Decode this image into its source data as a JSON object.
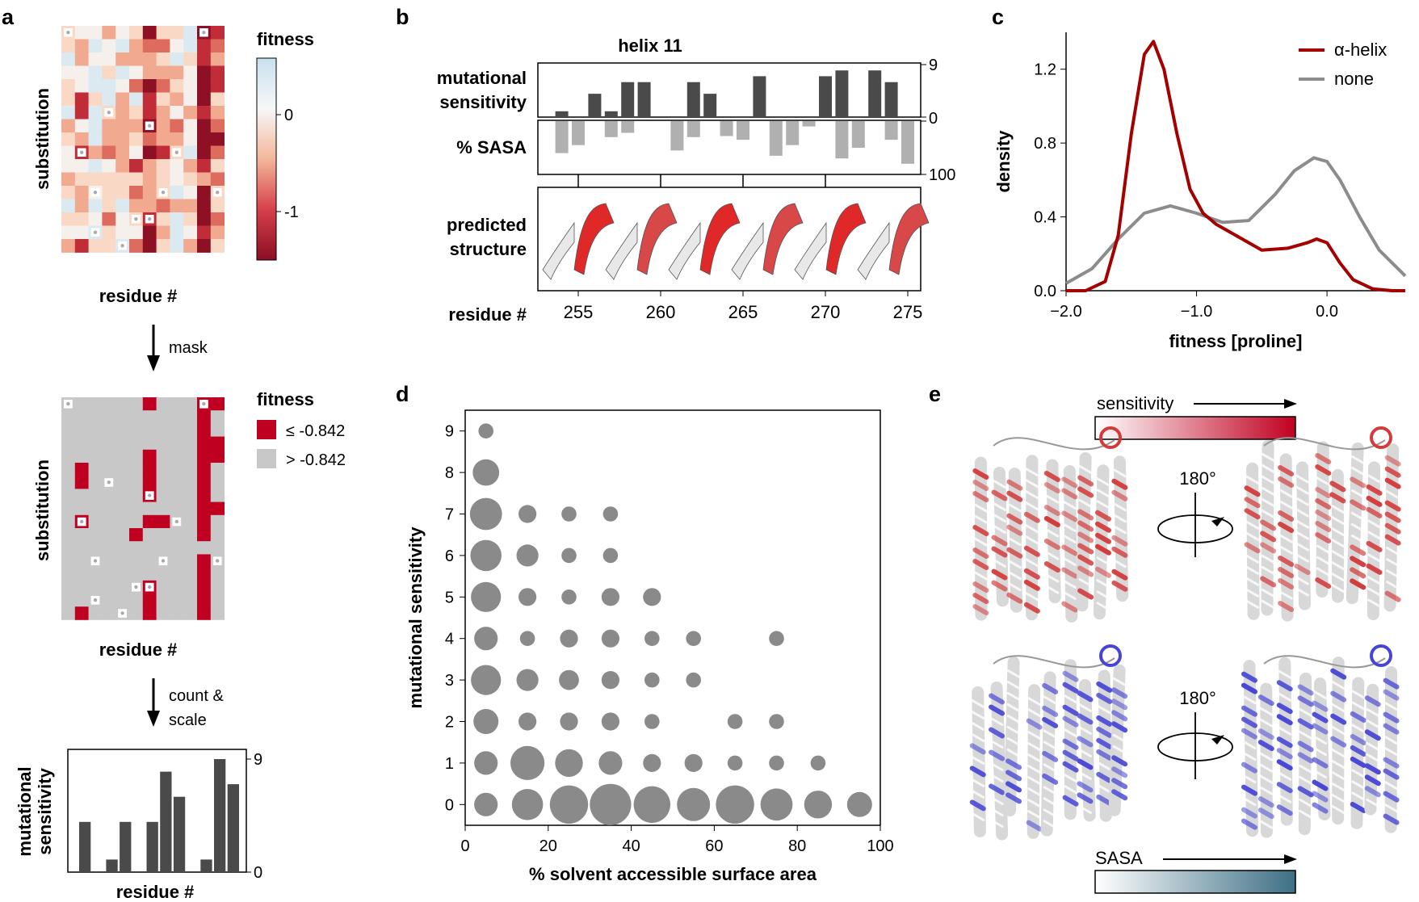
{
  "figure": {
    "panel_labels": [
      "a",
      "b",
      "c",
      "d",
      "e"
    ]
  },
  "panel_a": {
    "heatmap_ylabel": "substitution",
    "heatmap_xlabel": "residue #",
    "colorbar_title": "fitness",
    "colorbar_ticks": [
      "0",
      "-1"
    ],
    "arrow1_label": "mask",
    "mask_title": "fitness",
    "mask_legend": [
      "≤ -0.842",
      "> -0.842"
    ],
    "mask_ylabel": "substitution",
    "mask_xlabel": "residue #",
    "arrow2_label_line1": "count &",
    "arrow2_label_line2": "scale",
    "bar_ylabel_line1": "mutational",
    "bar_ylabel_line2": "sensitivity",
    "bar_xlabel": "residue #",
    "bar_ticks": [
      "9",
      "0"
    ],
    "bar_values": [
      4,
      0,
      1,
      4,
      0,
      4,
      8,
      6,
      0,
      1,
      9,
      7
    ],
    "colors": {
      "high": "#67001f",
      "low": "#c00020",
      "masked_gray": "#c8c8c8",
      "bar": "#4a4a4a"
    }
  },
  "panel_b": {
    "title": "helix 11",
    "sens_label_line1": "mutational",
    "sens_label_line2": "sensitivity",
    "sasa_label": "% SASA",
    "struct_label_line1": "predicted",
    "struct_label_line2": "structure",
    "xlabel": "residue #",
    "sens_ticks": [
      "9",
      "0"
    ],
    "sasa_ticks": [
      "0",
      "100"
    ],
    "x_ticks": [
      "255",
      "260",
      "265",
      "270",
      "275"
    ],
    "residues": [
      254,
      255,
      256,
      257,
      258,
      259,
      260,
      261,
      262,
      263,
      264,
      265,
      266,
      267,
      268,
      269,
      270,
      271,
      272,
      273,
      274,
      275
    ],
    "sensitivity": [
      1,
      0,
      4,
      1,
      6,
      6,
      0,
      0,
      6,
      4,
      0,
      0,
      7,
      0,
      0,
      0,
      7,
      8,
      0,
      8,
      6,
      0
    ],
    "sasa": [
      60,
      45,
      0,
      30,
      22,
      0,
      0,
      55,
      30,
      0,
      28,
      35,
      0,
      65,
      45,
      10,
      0,
      70,
      50,
      0,
      35,
      80
    ]
  },
  "panel_c": {
    "chart_data": {
      "type": "line",
      "xlabel": "fitness [proline]",
      "ylabel": "density",
      "xlim": [
        -2.0,
        0.6
      ],
      "ylim": [
        0.0,
        1.4
      ],
      "x_ticks": [
        "−2.0",
        "−1.0",
        "0.0"
      ],
      "y_ticks": [
        "0.0",
        "0.4",
        "0.8",
        "1.2"
      ],
      "series": [
        {
          "name": "α-helix",
          "color": "#a40000",
          "x": [
            -2.0,
            -1.85,
            -1.7,
            -1.6,
            -1.5,
            -1.4,
            -1.33,
            -1.25,
            -1.15,
            -1.05,
            -0.95,
            -0.85,
            -0.7,
            -0.5,
            -0.3,
            -0.15,
            -0.08,
            0.0,
            0.1,
            0.2,
            0.35,
            0.5,
            0.6
          ],
          "y": [
            0.0,
            0.0,
            0.05,
            0.3,
            0.85,
            1.28,
            1.35,
            1.2,
            0.85,
            0.55,
            0.42,
            0.36,
            0.3,
            0.22,
            0.23,
            0.26,
            0.28,
            0.26,
            0.15,
            0.06,
            0.01,
            0.0,
            0.0
          ]
        },
        {
          "name": "none",
          "color": "#8c8c8c",
          "x": [
            -2.0,
            -1.8,
            -1.6,
            -1.4,
            -1.2,
            -1.0,
            -0.8,
            -0.6,
            -0.4,
            -0.25,
            -0.1,
            0.0,
            0.1,
            0.25,
            0.4,
            0.6
          ],
          "y": [
            0.04,
            0.12,
            0.28,
            0.42,
            0.46,
            0.42,
            0.37,
            0.38,
            0.52,
            0.65,
            0.72,
            0.7,
            0.6,
            0.4,
            0.22,
            0.08
          ]
        }
      ]
    }
  },
  "panel_d": {
    "chart_data": {
      "type": "scatter",
      "xlabel": "% solvent accessible surface area",
      "ylabel": "mutational sensitivity",
      "xlim": [
        0,
        100
      ],
      "ylim": [
        -0.5,
        9.5
      ],
      "x_ticks": [
        "0",
        "20",
        "40",
        "60",
        "80",
        "100"
      ],
      "y_ticks": [
        "0",
        "1",
        "2",
        "3",
        "4",
        "5",
        "6",
        "7",
        "8",
        "9"
      ],
      "points": [
        {
          "x": 5,
          "y": 9,
          "size": 1
        },
        {
          "x": 5,
          "y": 8,
          "size": 7
        },
        {
          "x": 5,
          "y": 7,
          "size": 12
        },
        {
          "x": 15,
          "y": 7,
          "size": 2
        },
        {
          "x": 25,
          "y": 7,
          "size": 1
        },
        {
          "x": 35,
          "y": 7,
          "size": 1
        },
        {
          "x": 5,
          "y": 6,
          "size": 11
        },
        {
          "x": 15,
          "y": 6,
          "size": 4
        },
        {
          "x": 25,
          "y": 6,
          "size": 1
        },
        {
          "x": 35,
          "y": 6,
          "size": 1
        },
        {
          "x": 5,
          "y": 5,
          "size": 10
        },
        {
          "x": 15,
          "y": 5,
          "size": 2
        },
        {
          "x": 25,
          "y": 5,
          "size": 1
        },
        {
          "x": 35,
          "y": 5,
          "size": 2
        },
        {
          "x": 45,
          "y": 5,
          "size": 2
        },
        {
          "x": 5,
          "y": 4,
          "size": 5
        },
        {
          "x": 15,
          "y": 4,
          "size": 1
        },
        {
          "x": 25,
          "y": 4,
          "size": 2
        },
        {
          "x": 35,
          "y": 4,
          "size": 2
        },
        {
          "x": 45,
          "y": 4,
          "size": 1
        },
        {
          "x": 55,
          "y": 4,
          "size": 1
        },
        {
          "x": 75,
          "y": 4,
          "size": 1
        },
        {
          "x": 5,
          "y": 3,
          "size": 10
        },
        {
          "x": 15,
          "y": 3,
          "size": 4
        },
        {
          "x": 25,
          "y": 3,
          "size": 3
        },
        {
          "x": 35,
          "y": 3,
          "size": 2
        },
        {
          "x": 45,
          "y": 3,
          "size": 1
        },
        {
          "x": 55,
          "y": 3,
          "size": 1
        },
        {
          "x": 5,
          "y": 2,
          "size": 6
        },
        {
          "x": 15,
          "y": 2,
          "size": 2
        },
        {
          "x": 25,
          "y": 2,
          "size": 2
        },
        {
          "x": 35,
          "y": 2,
          "size": 2
        },
        {
          "x": 45,
          "y": 2,
          "size": 1
        },
        {
          "x": 65,
          "y": 2,
          "size": 1
        },
        {
          "x": 75,
          "y": 2,
          "size": 1
        },
        {
          "x": 5,
          "y": 1,
          "size": 5
        },
        {
          "x": 15,
          "y": 1,
          "size": 14
        },
        {
          "x": 25,
          "y": 1,
          "size": 8
        },
        {
          "x": 35,
          "y": 1,
          "size": 5
        },
        {
          "x": 45,
          "y": 1,
          "size": 2
        },
        {
          "x": 55,
          "y": 1,
          "size": 2
        },
        {
          "x": 65,
          "y": 1,
          "size": 1
        },
        {
          "x": 75,
          "y": 1,
          "size": 1
        },
        {
          "x": 85,
          "y": 1,
          "size": 1
        },
        {
          "x": 5,
          "y": 0,
          "size": 5
        },
        {
          "x": 15,
          "y": 0,
          "size": 11
        },
        {
          "x": 25,
          "y": 0,
          "size": 19
        },
        {
          "x": 35,
          "y": 0,
          "size": 23
        },
        {
          "x": 45,
          "y": 0,
          "size": 17
        },
        {
          "x": 55,
          "y": 0,
          "size": 13
        },
        {
          "x": 65,
          "y": 0,
          "size": 19
        },
        {
          "x": 75,
          "y": 0,
          "size": 12
        },
        {
          "x": 85,
          "y": 0,
          "size": 8
        },
        {
          "x": 95,
          "y": 0,
          "size": 6
        }
      ]
    }
  },
  "panel_e": {
    "sensitivity_label": "sensitivity",
    "sasa_label": "SASA",
    "rotation_label": "180°",
    "colors": {
      "sens_max": "#c00020",
      "sasa_max": "#3d6f85",
      "protein_red": "#d43a3a",
      "protein_blue": "#4646d6"
    }
  }
}
